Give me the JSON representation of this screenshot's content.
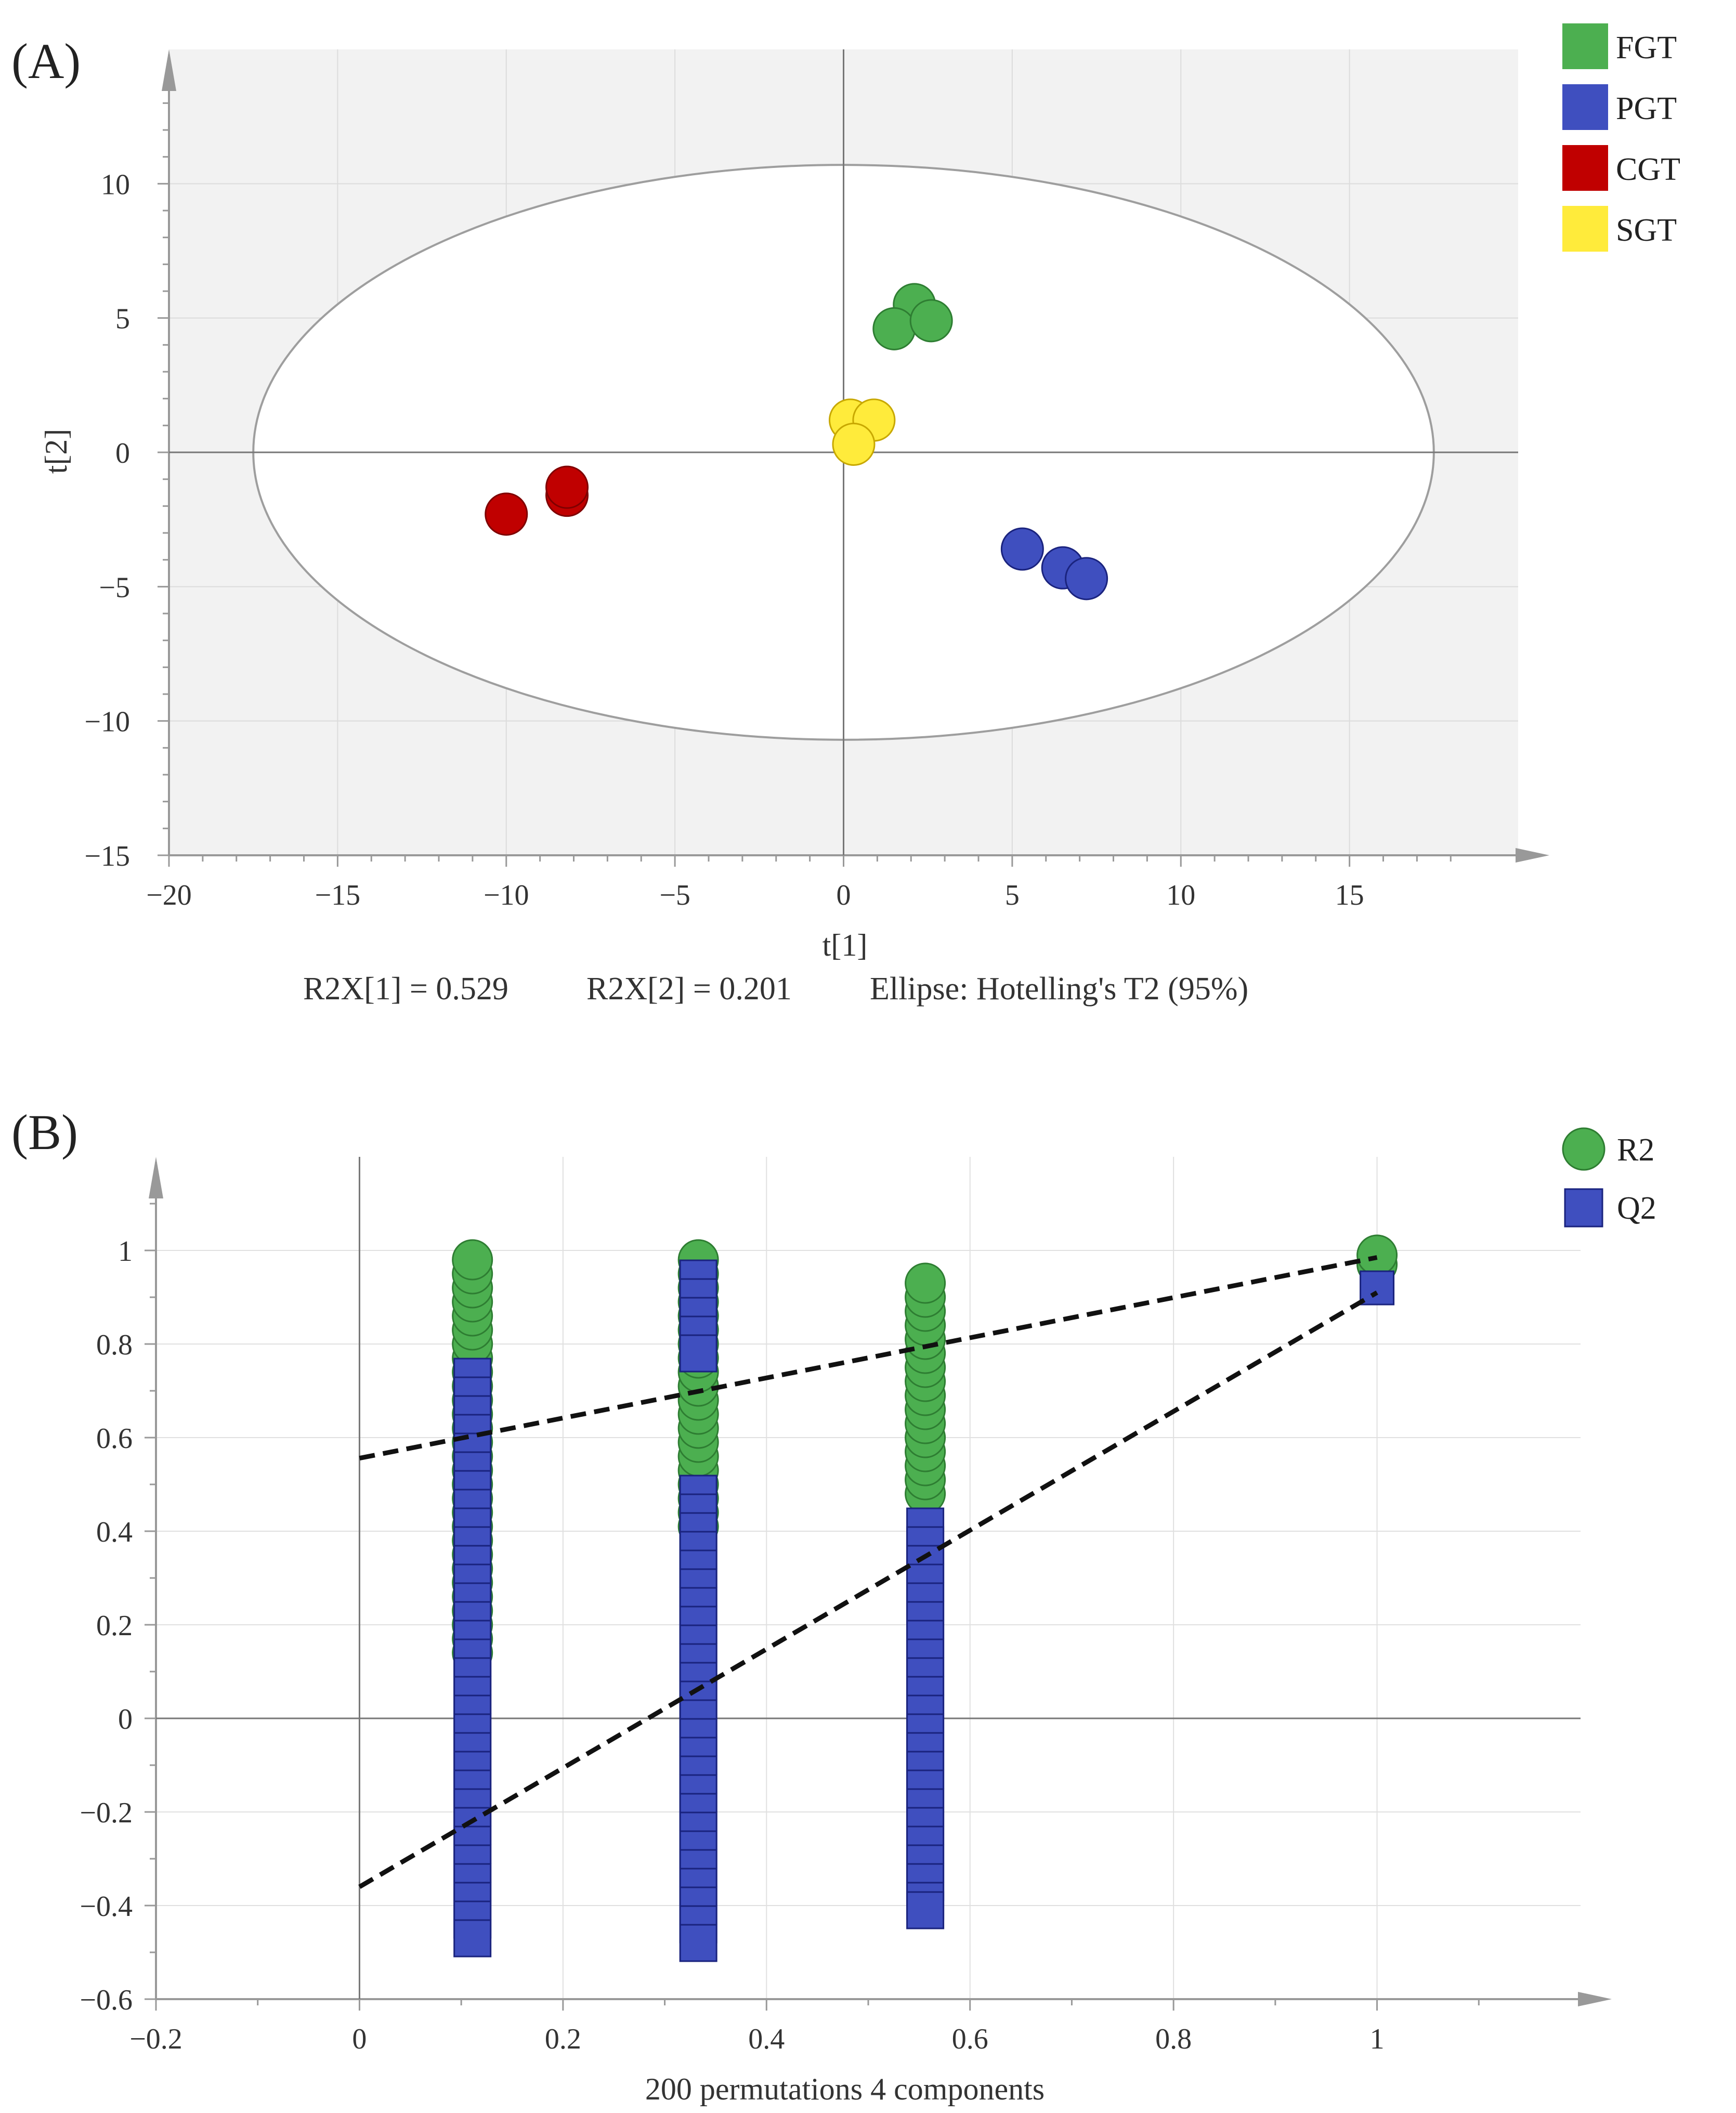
{
  "colors": {
    "FGT": "#4caf50",
    "PGT": "#3f4fbf",
    "CGT": "#c00000",
    "SGT": "#ffeb3b",
    "R2": "#4caf50",
    "Q2": "#3f4fbf",
    "plot_bg_a": "#f2f2f2"
  },
  "chart_data": [
    {
      "type": "scatter",
      "panel_label": "(A)",
      "title": "",
      "xlabel": "t[1]",
      "ylabel": "t[2]",
      "xlim": [
        -20,
        20
      ],
      "ylim": [
        -15,
        15
      ],
      "xticks": [
        -20,
        -15,
        -10,
        -5,
        0,
        5,
        10,
        15
      ],
      "xtick_labels": [
        "−20",
        "−15",
        "−10",
        "−5",
        "0",
        "5",
        "10",
        "15"
      ],
      "yticks": [
        10,
        5,
        0,
        -5,
        -10,
        -15
      ],
      "ytick_labels": [
        "10",
        "5",
        "0",
        "−5",
        "−10",
        "−15"
      ],
      "legend": [
        {
          "name": "FGT",
          "marker": "square"
        },
        {
          "name": "PGT",
          "marker": "square"
        },
        {
          "name": "CGT",
          "marker": "square"
        },
        {
          "name": "SGT",
          "marker": "square"
        }
      ],
      "legend_position": "top-right",
      "series": [
        {
          "name": "FGT",
          "points": [
            [
              2.1,
              5.5
            ],
            [
              1.5,
              4.6
            ],
            [
              2.6,
              4.9
            ]
          ]
        },
        {
          "name": "PGT",
          "points": [
            [
              5.3,
              -3.6
            ],
            [
              6.5,
              -4.3
            ],
            [
              7.2,
              -4.7
            ]
          ]
        },
        {
          "name": "CGT",
          "points": [
            [
              -10.0,
              -2.3
            ],
            [
              -8.2,
              -1.6
            ],
            [
              -8.2,
              -1.3
            ]
          ]
        },
        {
          "name": "SGT",
          "points": [
            [
              0.2,
              1.2
            ],
            [
              0.9,
              1.2
            ],
            [
              0.3,
              0.3
            ]
          ]
        }
      ],
      "ellipse": {
        "center": [
          0,
          0
        ],
        "semi_axis_x": 17.5,
        "semi_axis_y": 10.7
      },
      "footer_items": [
        "R2X[1] = 0.529",
        "R2X[2] = 0.201",
        "Ellipse: Hotelling's T2 (95%)"
      ]
    },
    {
      "type": "scatter",
      "panel_label": "(B)",
      "title": "",
      "xlabel": "200 permutations 4 components",
      "ylabel": "",
      "xlim": [
        -0.2,
        1.2
      ],
      "ylim": [
        -0.6,
        1.2
      ],
      "xticks": [
        -0.2,
        0,
        0.2,
        0.4,
        0.6,
        0.8,
        1
      ],
      "xtick_labels": [
        "−0.2",
        "0",
        "0.2",
        "0.4",
        "0.6",
        "0.8",
        "1"
      ],
      "yticks": [
        1,
        0.8,
        0.6,
        0.4,
        0.2,
        0,
        -0.2,
        -0.4,
        -0.6
      ],
      "ytick_labels": [
        "1",
        "0.8",
        "0.6",
        "0.4",
        "0.2",
        "0",
        "−0.2",
        "−0.4",
        "−0.6"
      ],
      "legend": [
        {
          "name": "R2",
          "marker": "circle"
        },
        {
          "name": "Q2",
          "marker": "square"
        }
      ],
      "legend_position": "top-right",
      "series": [
        {
          "name": "R2",
          "marker": "circle",
          "groups": [
            {
              "x": 0.111,
              "y": [
                0.98,
                0.95,
                0.92,
                0.89,
                0.86,
                0.83,
                0.8,
                0.77,
                0.74,
                0.71,
                0.68,
                0.65,
                0.62,
                0.59,
                0.56,
                0.53,
                0.5,
                0.47,
                0.44,
                0.41,
                0.38,
                0.35,
                0.32,
                0.29,
                0.26,
                0.23,
                0.2,
                0.17,
                0.14
              ]
            },
            {
              "x": 0.333,
              "y": [
                0.98,
                0.95,
                0.92,
                0.89,
                0.86,
                0.83,
                0.8,
                0.77,
                0.74,
                0.71,
                0.68,
                0.65,
                0.62,
                0.59,
                0.56,
                0.53,
                0.5,
                0.47,
                0.44,
                0.41
              ]
            },
            {
              "x": 0.556,
              "y": [
                0.93,
                0.9,
                0.87,
                0.84,
                0.81,
                0.78,
                0.75,
                0.72,
                0.69,
                0.66,
                0.63,
                0.6,
                0.57,
                0.54,
                0.51,
                0.48
              ]
            },
            {
              "x": 1.0,
              "y": [
                0.99,
                0.97
              ]
            }
          ]
        },
        {
          "name": "Q2",
          "marker": "square",
          "groups": [
            {
              "x": 0.111,
              "y": [
                0.73,
                0.69,
                0.65,
                0.61,
                0.57,
                0.53,
                0.49,
                0.45,
                0.41,
                0.37,
                0.33,
                0.29,
                0.25,
                0.21,
                0.17,
                0.13,
                0.09,
                0.05,
                0.01,
                -0.03,
                -0.07,
                -0.11,
                -0.15,
                -0.19,
                -0.23,
                -0.27,
                -0.31,
                -0.35,
                -0.39,
                -0.43,
                -0.47
              ]
            },
            {
              "x": 0.333,
              "y": [
                0.94,
                0.9,
                0.86,
                0.82,
                0.78,
                0.48,
                0.44,
                0.4,
                0.36,
                0.32,
                0.28,
                0.24,
                0.2,
                0.16,
                0.12,
                0.08,
                0.04,
                0.0,
                -0.04,
                -0.08,
                -0.12,
                -0.16,
                -0.2,
                -0.24,
                -0.28,
                -0.32,
                -0.36,
                -0.4,
                -0.44,
                -0.48
              ]
            },
            {
              "x": 0.556,
              "y": [
                0.41,
                0.37,
                0.33,
                0.29,
                0.25,
                0.21,
                0.17,
                0.13,
                0.09,
                0.05,
                0.01,
                -0.03,
                -0.07,
                -0.11,
                -0.15,
                -0.19,
                -0.23,
                -0.27,
                -0.31,
                -0.35,
                -0.39,
                -0.41
              ]
            },
            {
              "x": 1.0,
              "y": [
                0.92
              ]
            }
          ]
        }
      ],
      "regression_lines": [
        {
          "name": "R2",
          "x": [
            0,
            1
          ],
          "y": [
            0.556,
            0.985
          ]
        },
        {
          "name": "Q2",
          "x": [
            0,
            1
          ],
          "y": [
            -0.36,
            0.91
          ]
        }
      ]
    }
  ]
}
